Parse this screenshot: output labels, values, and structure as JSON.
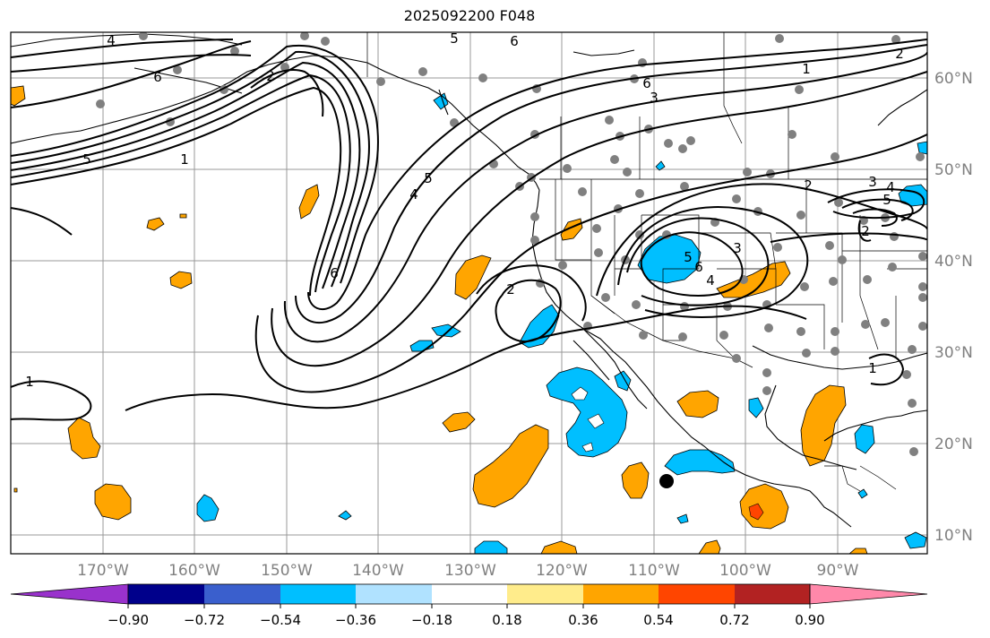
{
  "title": "2025092200 F048",
  "map": {
    "lat_labels": [
      "60°N",
      "50°N",
      "40°N",
      "30°N",
      "20°N",
      "10°N"
    ],
    "lon_labels": [
      "170°W",
      "160°W",
      "150°W",
      "140°W",
      "130°W",
      "120°W",
      "110°W",
      "100°W",
      "90°W"
    ],
    "contour_labels": [
      "4",
      "5",
      "6",
      "1",
      "2",
      "4",
      "5",
      "6",
      "2",
      "6",
      "5",
      "6",
      "1",
      "2",
      "3",
      "4",
      "5",
      "6",
      "3",
      "2",
      "3",
      "4",
      "5",
      "2",
      "1",
      "1"
    ]
  },
  "colorbar": {
    "ticks": [
      "−0.90",
      "−0.72",
      "−0.54",
      "−0.36",
      "−0.18",
      "0.18",
      "0.36",
      "0.54",
      "0.72",
      "0.90"
    ],
    "colors": [
      "#9932cc",
      "#00008b",
      "#3a5fcd",
      "#00bfff",
      "#b0e2ff",
      "#ffffff",
      "#ffec8b",
      "#ffa500",
      "#ff4500",
      "#b22222",
      "#ff88aa"
    ]
  }
}
